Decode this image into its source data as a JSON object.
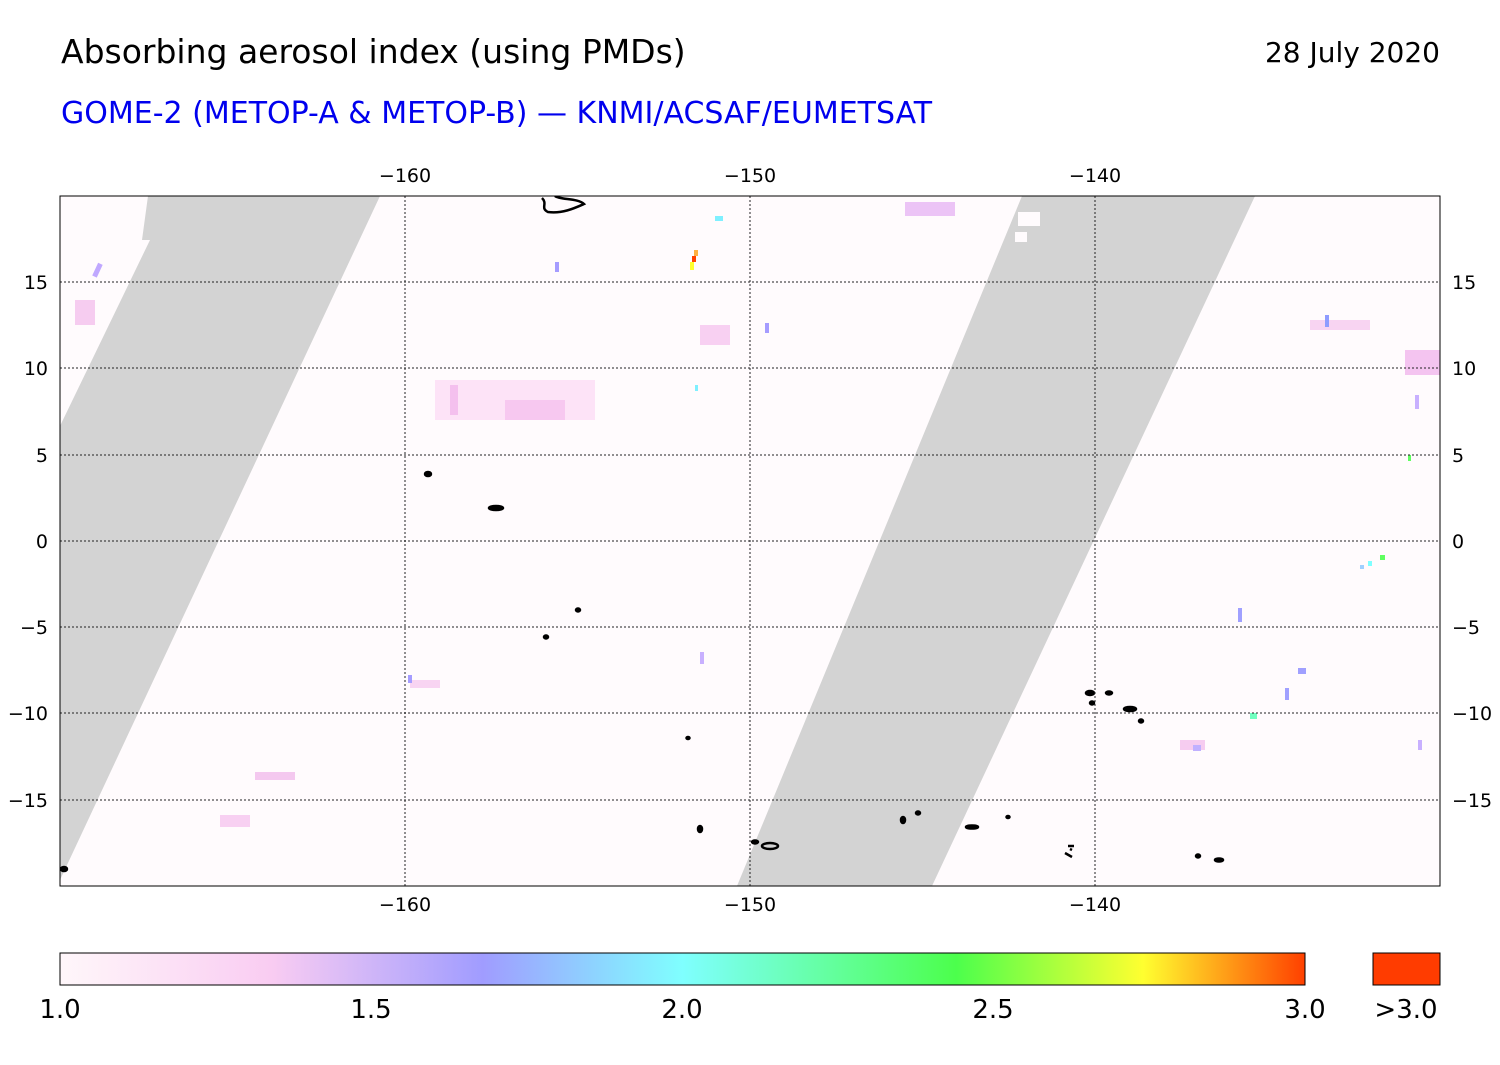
{
  "header": {
    "title": "Absorbing aerosol index (using PMDs)",
    "date": "28 July 2020",
    "subtitle": "GOME-2 (METOP-A & METOP-B) — KNMI/ACSAF/EUMETSAT"
  },
  "map": {
    "lon_range": [
      -170,
      -130
    ],
    "lat_range": [
      -20,
      20
    ],
    "lon_ticks": [
      "−160",
      "−150",
      "−140"
    ],
    "lat_ticks": [
      "15",
      "10",
      "5",
      "0",
      "−5",
      "−10",
      "−15"
    ],
    "no_data_color": "#d3d3d3",
    "background_color": "#fffbfd",
    "gridlines": true
  },
  "colorbar": {
    "labels": [
      "1.0",
      "1.5",
      "2.0",
      "2.5",
      "3.0"
    ],
    "overflow_label": ">3.0",
    "range": [
      1.0,
      3.0
    ],
    "overflow_color": "#ff3c00",
    "colors": [
      "#fff7fa",
      "#f9ccf2",
      "#a09cff",
      "#7fffff",
      "#4cff4c",
      "#ffff30",
      "#ff4000"
    ]
  }
}
